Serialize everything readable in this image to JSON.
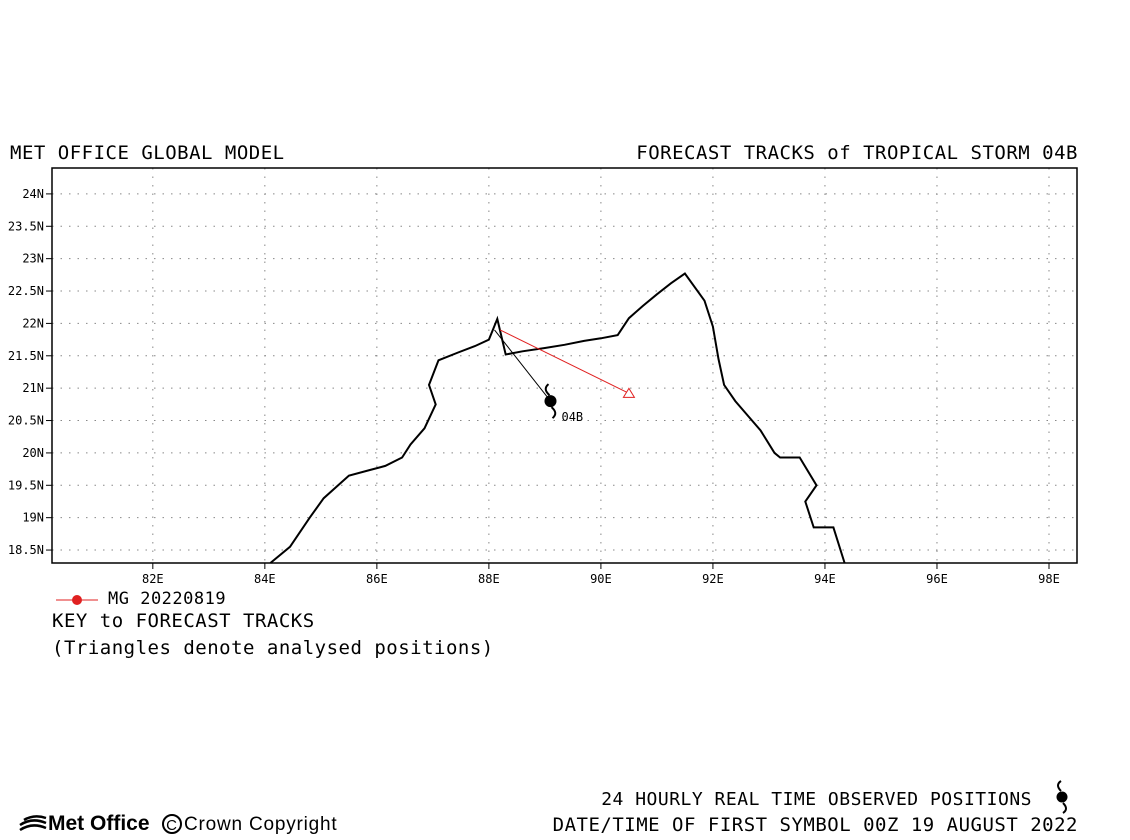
{
  "header": {
    "left_title": "MET OFFICE GLOBAL MODEL",
    "right_title": "FORECAST TRACKS of TROPICAL STORM 04B"
  },
  "map": {
    "lon_range": [
      80.2,
      98.5
    ],
    "lat_range": [
      18.3,
      24.4
    ],
    "x_ticks": [
      {
        "value": 82,
        "label": "82E"
      },
      {
        "value": 84,
        "label": "84E"
      },
      {
        "value": 86,
        "label": "86E"
      },
      {
        "value": 88,
        "label": "88E"
      },
      {
        "value": 90,
        "label": "90E"
      },
      {
        "value": 92,
        "label": "92E"
      },
      {
        "value": 94,
        "label": "94E"
      },
      {
        "value": 96,
        "label": "96E"
      },
      {
        "value": 98,
        "label": "98E"
      }
    ],
    "y_ticks": [
      {
        "value": 18.5,
        "label": "18.5N"
      },
      {
        "value": 19,
        "label": "19N"
      },
      {
        "value": 19.5,
        "label": "19.5N"
      },
      {
        "value": 20,
        "label": "20N"
      },
      {
        "value": 20.5,
        "label": "20.5N"
      },
      {
        "value": 21,
        "label": "21N"
      },
      {
        "value": 21.5,
        "label": "21.5N"
      },
      {
        "value": 22,
        "label": "22N"
      },
      {
        "value": 22.5,
        "label": "22.5N"
      },
      {
        "value": 23,
        "label": "23N"
      },
      {
        "value": 23.5,
        "label": "23.5N"
      },
      {
        "value": 24,
        "label": "24N"
      }
    ],
    "coastline": [
      [
        84.1,
        18.3
      ],
      [
        84.45,
        18.55
      ],
      [
        84.8,
        19.0
      ],
      [
        85.05,
        19.3
      ],
      [
        85.5,
        19.65
      ],
      [
        85.85,
        19.73
      ],
      [
        86.15,
        19.8
      ],
      [
        86.45,
        19.93
      ],
      [
        86.6,
        20.13
      ],
      [
        86.85,
        20.38
      ],
      [
        87.05,
        20.75
      ],
      [
        86.93,
        21.05
      ],
      [
        87.1,
        21.43
      ],
      [
        87.45,
        21.55
      ],
      [
        87.75,
        21.65
      ],
      [
        88.0,
        21.75
      ],
      [
        88.15,
        22.07
      ],
      [
        88.3,
        21.52
      ],
      [
        88.6,
        21.57
      ],
      [
        89.0,
        21.62
      ],
      [
        89.35,
        21.67
      ],
      [
        89.7,
        21.73
      ],
      [
        90.0,
        21.77
      ],
      [
        90.3,
        21.82
      ],
      [
        90.5,
        22.08
      ],
      [
        90.75,
        22.27
      ],
      [
        91.0,
        22.45
      ],
      [
        91.25,
        22.62
      ],
      [
        91.5,
        22.77
      ],
      [
        91.85,
        22.35
      ],
      [
        92.0,
        21.95
      ],
      [
        92.1,
        21.45
      ],
      [
        92.2,
        21.05
      ],
      [
        92.4,
        20.8
      ],
      [
        92.6,
        20.6
      ],
      [
        92.85,
        20.35
      ],
      [
        93.1,
        20.0
      ],
      [
        93.2,
        19.93
      ],
      [
        93.55,
        19.93
      ],
      [
        93.85,
        19.5
      ],
      [
        93.65,
        19.25
      ],
      [
        93.8,
        18.85
      ],
      [
        94.15,
        18.85
      ],
      [
        94.35,
        18.3
      ]
    ],
    "observed_track": [
      {
        "lon": 88.1,
        "lat": 21.9
      },
      {
        "lon": 89.1,
        "lat": 20.8
      }
    ],
    "storm": {
      "label": "04B",
      "lon": 89.1,
      "lat": 20.8
    },
    "forecast_tracks": [
      {
        "name": "MG 20220819",
        "color": "#e02020",
        "points": [
          {
            "lon": 88.2,
            "lat": 21.9
          },
          {
            "lon": 90.5,
            "lat": 20.92
          }
        ]
      }
    ]
  },
  "legend": {
    "entry_label": "MG 20220819",
    "entry_color": "#e02020",
    "key_title": "KEY to FORECAST TRACKS",
    "note": "(Triangles denote analysed positions)"
  },
  "footer": {
    "observed_positions": "24 HOURLY REAL TIME OBSERVED POSITIONS",
    "date_time": "DATE/TIME OF FIRST SYMBOL 00Z 19 AUGUST 2022",
    "logo_text": "Met Office",
    "copyright_symbol": "C",
    "copyright_text": "Crown Copyright"
  }
}
